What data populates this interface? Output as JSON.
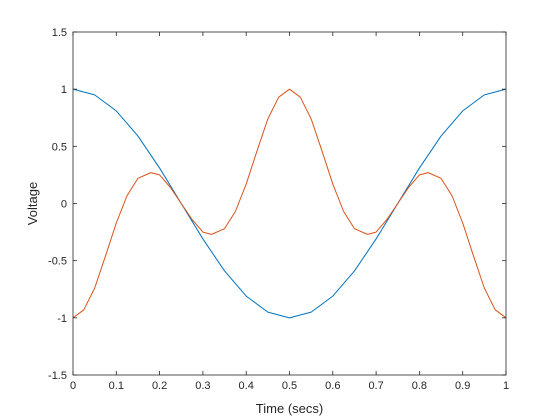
{
  "chart_data": {
    "type": "line",
    "title": "",
    "xlabel": "Time (secs)",
    "ylabel": "Voltage",
    "xlim": [
      0,
      1
    ],
    "ylim": [
      -1.5,
      1.5
    ],
    "xticks": [
      0,
      0.1,
      0.2,
      0.3,
      0.4,
      0.5,
      0.6,
      0.7,
      0.8,
      0.9,
      1
    ],
    "xtick_labels": [
      "0",
      "0.1",
      "0.2",
      "0.3",
      "0.4",
      "0.5",
      "0.6",
      "0.7",
      "0.8",
      "0.9",
      "1"
    ],
    "yticks": [
      -1.5,
      -1,
      -0.5,
      0,
      0.5,
      1,
      1.5
    ],
    "ytick_labels": [
      "-1.5",
      "-1",
      "-0.5",
      "0",
      "0.5",
      "1",
      "1.5"
    ],
    "grid": false,
    "legend": "none",
    "series": [
      {
        "color": "#0072BD",
        "x": [
          0,
          0.05,
          0.1,
          0.15,
          0.2,
          0.25,
          0.3,
          0.35,
          0.4,
          0.45,
          0.5,
          0.55,
          0.6,
          0.65,
          0.7,
          0.75,
          0.8,
          0.85,
          0.9,
          0.95,
          1
        ],
        "y": [
          1,
          0.95,
          0.81,
          0.59,
          0.31,
          0,
          -0.31,
          -0.59,
          -0.81,
          -0.95,
          -1,
          -0.95,
          -0.81,
          -0.59,
          -0.31,
          0,
          0.31,
          0.59,
          0.81,
          0.95,
          1
        ]
      },
      {
        "color": "#D95319",
        "x": [
          0,
          0.025,
          0.05,
          0.075,
          0.1,
          0.125,
          0.15,
          0.18,
          0.2,
          0.225,
          0.25,
          0.275,
          0.3,
          0.32,
          0.35,
          0.375,
          0.4,
          0.425,
          0.45,
          0.475,
          0.5,
          0.525,
          0.55,
          0.575,
          0.6,
          0.625,
          0.65,
          0.68,
          0.7,
          0.725,
          0.75,
          0.775,
          0.8,
          0.82,
          0.85,
          0.875,
          0.9,
          0.925,
          0.95,
          0.975,
          1
        ],
        "y": [
          -1,
          -0.93,
          -0.74,
          -0.46,
          -0.17,
          0.07,
          0.22,
          0.27,
          0.25,
          0.14,
          0,
          -0.14,
          -0.25,
          -0.27,
          -0.22,
          -0.07,
          0.17,
          0.46,
          0.74,
          0.93,
          1,
          0.93,
          0.74,
          0.46,
          0.17,
          -0.07,
          -0.22,
          -0.27,
          -0.25,
          -0.14,
          0,
          0.14,
          0.25,
          0.27,
          0.22,
          0.07,
          -0.17,
          -0.46,
          -0.74,
          -0.93,
          -1
        ]
      }
    ]
  }
}
